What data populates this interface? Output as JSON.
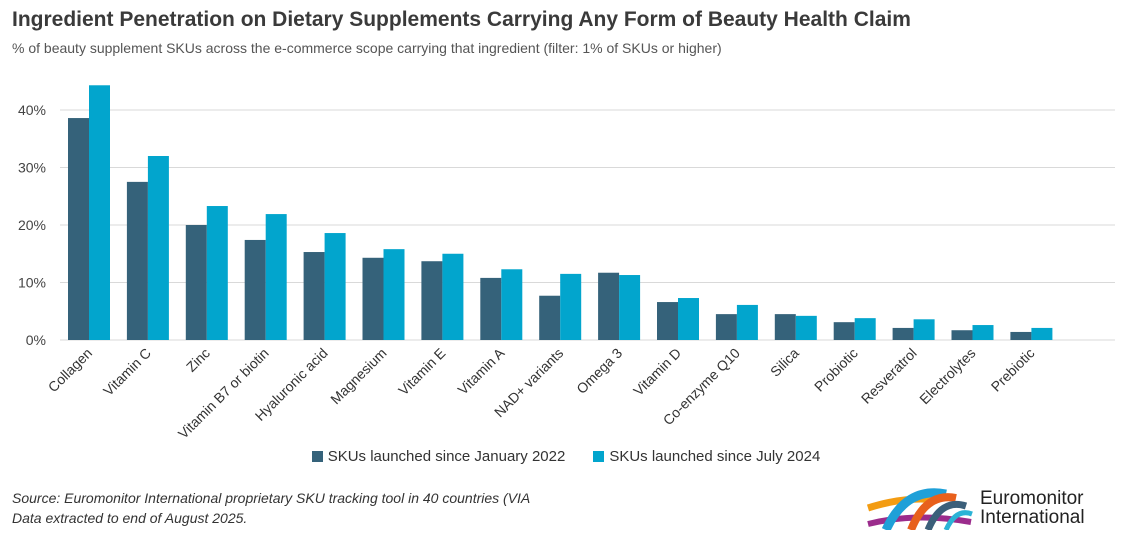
{
  "chart_data": {
    "type": "bar",
    "title": "Ingredient Penetration on Dietary Supplements Carrying Any Form of Beauty Health Claim",
    "subtitle": "% of beauty supplement SKUs across the e-commerce scope carrying that ingredient (filter: 1% of SKUs or higher)",
    "categories": [
      "Collagen",
      "Vitamin C",
      "Zinc",
      "Vitamin B7 or biotin",
      "Hyaluronic acid",
      "Magnesium",
      "Vitamin E",
      "Vitamin A",
      "NAD+ variants",
      "Omega 3",
      "Vitamin D",
      "Co-enzyme Q10",
      "Silica",
      "Probiotic",
      "Resveratrol",
      "Electrolytes",
      "Prebiotic"
    ],
    "series": [
      {
        "name": "SKUs launched since January 2022",
        "color": "#35627a",
        "values": [
          38.6,
          27.5,
          20.0,
          17.4,
          15.3,
          14.3,
          13.7,
          10.8,
          7.7,
          11.7,
          6.6,
          4.5,
          4.5,
          3.1,
          2.1,
          1.7,
          1.4
        ]
      },
      {
        "name": "SKUs launched since July 2024",
        "color": "#02a5cd",
        "values": [
          44.3,
          32.0,
          23.3,
          21.9,
          18.6,
          15.8,
          15.0,
          12.3,
          11.5,
          11.3,
          7.3,
          6.1,
          4.2,
          3.8,
          3.6,
          2.6,
          2.1
        ]
      }
    ],
    "yticks": [
      "0%",
      "10%",
      "20%",
      "30%",
      "40%"
    ],
    "ylim": [
      0,
      45
    ],
    "grid": true,
    "legend_position": "bottom"
  },
  "footer": {
    "source_line1": "Source: Euromonitor International proprietary SKU tracking tool in 40 countries (VIA",
    "source_line2": "Data extracted to end of August 2025.",
    "logo_line1": "Euromonitor",
    "logo_line2": "International"
  }
}
